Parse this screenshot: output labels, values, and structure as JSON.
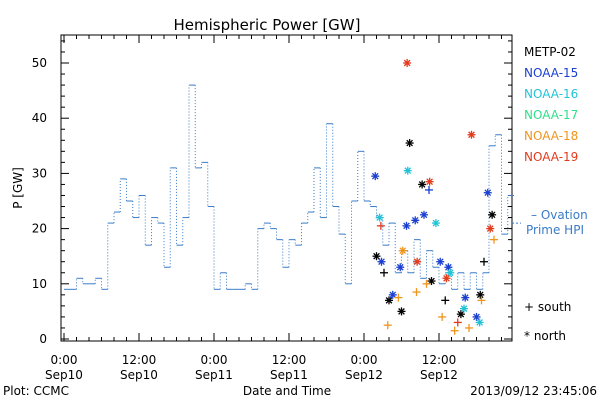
{
  "chart_data": {
    "type": "line",
    "title": "Hemispheric Power [GW]",
    "ylabel": "P [GW]",
    "xlabel": "Date and Time",
    "ylim": [
      0,
      55
    ],
    "xlim_hours": [
      0,
      72
    ],
    "x_unit": "hours from 2013-09-10 00:00 UT",
    "yticks": [
      0,
      10,
      20,
      30,
      40,
      50
    ],
    "xticks": [
      {
        "x": 0,
        "line1": "0:00",
        "line2": "Sep10"
      },
      {
        "x": 12,
        "line1": "12:00",
        "line2": "Sep10"
      },
      {
        "x": 24,
        "line1": "0:00",
        "line2": "Sep11"
      },
      {
        "x": 36,
        "line1": "12:00",
        "line2": "Sep11"
      },
      {
        "x": 48,
        "line1": "0:00",
        "line2": "Sep12"
      },
      {
        "x": 60,
        "line1": "12:00",
        "line2": "Sep12"
      }
    ],
    "footer_left": "Plot: CCMC",
    "footer_right": "2013/09/12 23:45:06",
    "ovation_label_line1": "– Ovation",
    "ovation_label_line2": "Prime HPI",
    "ovation_color": "#3a7cc8",
    "legend": [
      {
        "name": "METP-02",
        "color": "#000000"
      },
      {
        "name": "NOAA-15",
        "color": "#1a3fd1"
      },
      {
        "name": "NOAA-16",
        "color": "#22c3d6"
      },
      {
        "name": "NOAA-17",
        "color": "#2fe08a"
      },
      {
        "name": "NOAA-18",
        "color": "#f0941c"
      },
      {
        "name": "NOAA-19",
        "color": "#e23b1c"
      }
    ],
    "symbol_legend": [
      {
        "symbol": "+",
        "label": "south"
      },
      {
        "symbol": "*",
        "label": "north"
      }
    ],
    "ovation_series": {
      "name": "Ovation Prime HPI",
      "steps": [
        [
          0,
          9
        ],
        [
          0.5,
          9
        ],
        [
          2,
          11
        ],
        [
          3,
          10
        ],
        [
          5,
          11
        ],
        [
          6,
          9
        ],
        [
          7,
          21
        ],
        [
          8,
          23
        ],
        [
          9,
          29
        ],
        [
          10,
          25
        ],
        [
          11,
          22
        ],
        [
          12,
          26
        ],
        [
          13,
          17
        ],
        [
          14,
          22
        ],
        [
          15,
          21
        ],
        [
          16,
          13
        ],
        [
          17,
          31
        ],
        [
          18,
          17
        ],
        [
          19,
          22
        ],
        [
          20,
          46
        ],
        [
          21,
          31
        ],
        [
          22,
          32
        ],
        [
          23,
          24
        ],
        [
          24,
          9
        ],
        [
          25,
          12
        ],
        [
          26,
          9
        ],
        [
          27,
          9
        ],
        [
          28,
          9
        ],
        [
          29,
          10
        ],
        [
          30,
          9
        ],
        [
          31,
          20
        ],
        [
          32,
          21
        ],
        [
          33,
          20
        ],
        [
          34,
          18
        ],
        [
          35,
          13
        ],
        [
          36,
          18
        ],
        [
          37,
          17
        ],
        [
          38,
          21
        ],
        [
          39,
          23
        ],
        [
          40,
          31
        ],
        [
          41,
          22
        ],
        [
          42,
          39
        ],
        [
          43,
          24
        ],
        [
          44,
          19
        ],
        [
          45,
          10
        ],
        [
          46,
          25
        ],
        [
          47,
          34
        ],
        [
          48,
          25
        ],
        [
          49,
          24
        ],
        [
          50,
          22
        ],
        [
          51,
          17
        ],
        [
          52,
          21
        ],
        [
          53,
          12
        ],
        [
          54,
          16
        ],
        [
          55,
          12
        ],
        [
          56,
          18
        ],
        [
          57,
          11
        ],
        [
          58,
          16
        ],
        [
          59,
          13
        ],
        [
          60,
          10
        ],
        [
          61,
          12
        ],
        [
          62,
          9
        ],
        [
          63,
          12
        ],
        [
          64,
          9
        ],
        [
          65,
          12
        ],
        [
          66,
          9
        ],
        [
          67,
          12
        ],
        [
          68,
          35
        ],
        [
          69,
          37
        ],
        [
          70,
          19
        ],
        [
          71,
          26
        ],
        [
          72,
          26
        ]
      ]
    },
    "satellite_points": [
      {
        "sat": "METP-02",
        "hemi": "north",
        "x": 50.0,
        "y": 15
      },
      {
        "sat": "METP-02",
        "hemi": "south",
        "x": 51.2,
        "y": 12
      },
      {
        "sat": "METP-02",
        "hemi": "north",
        "x": 52.0,
        "y": 7
      },
      {
        "sat": "METP-02",
        "hemi": "north",
        "x": 54.0,
        "y": 5
      },
      {
        "sat": "METP-02",
        "hemi": "north",
        "x": 55.3,
        "y": 35.5
      },
      {
        "sat": "METP-02",
        "hemi": "north",
        "x": 57.3,
        "y": 28
      },
      {
        "sat": "METP-02",
        "hemi": "north",
        "x": 58.8,
        "y": 10.5
      },
      {
        "sat": "METP-02",
        "hemi": "south",
        "x": 61.0,
        "y": 7
      },
      {
        "sat": "METP-02",
        "hemi": "north",
        "x": 63.5,
        "y": 4.5
      },
      {
        "sat": "METP-02",
        "hemi": "north",
        "x": 66.6,
        "y": 8
      },
      {
        "sat": "METP-02",
        "hemi": "south",
        "x": 67.2,
        "y": 14
      },
      {
        "sat": "METP-02",
        "hemi": "north",
        "x": 68.5,
        "y": 22.5
      },
      {
        "sat": "NOAA-15",
        "hemi": "north",
        "x": 49.8,
        "y": 29.5
      },
      {
        "sat": "NOAA-15",
        "hemi": "north",
        "x": 50.8,
        "y": 14
      },
      {
        "sat": "NOAA-15",
        "hemi": "north",
        "x": 52.6,
        "y": 8
      },
      {
        "sat": "NOAA-15",
        "hemi": "north",
        "x": 53.8,
        "y": 13
      },
      {
        "sat": "NOAA-15",
        "hemi": "north",
        "x": 54.8,
        "y": 20.5
      },
      {
        "sat": "NOAA-15",
        "hemi": "north",
        "x": 56.2,
        "y": 21.5
      },
      {
        "sat": "NOAA-15",
        "hemi": "north",
        "x": 57.6,
        "y": 22.5
      },
      {
        "sat": "NOAA-15",
        "hemi": "south",
        "x": 58.4,
        "y": 27
      },
      {
        "sat": "NOAA-15",
        "hemi": "north",
        "x": 60.2,
        "y": 14
      },
      {
        "sat": "NOAA-15",
        "hemi": "north",
        "x": 61.5,
        "y": 13
      },
      {
        "sat": "NOAA-15",
        "hemi": "north",
        "x": 64.2,
        "y": 7.5
      },
      {
        "sat": "NOAA-15",
        "hemi": "north",
        "x": 66.0,
        "y": 4
      },
      {
        "sat": "NOAA-15",
        "hemi": "north",
        "x": 67.8,
        "y": 26.5
      },
      {
        "sat": "NOAA-16",
        "hemi": "north",
        "x": 50.5,
        "y": 22
      },
      {
        "sat": "NOAA-16",
        "hemi": "north",
        "x": 55.0,
        "y": 30.5
      },
      {
        "sat": "NOAA-16",
        "hemi": "north",
        "x": 59.5,
        "y": 21
      },
      {
        "sat": "NOAA-16",
        "hemi": "north",
        "x": 61.8,
        "y": 12
      },
      {
        "sat": "NOAA-16",
        "hemi": "north",
        "x": 64.0,
        "y": 5.5
      },
      {
        "sat": "NOAA-16",
        "hemi": "north",
        "x": 66.5,
        "y": 3
      },
      {
        "sat": "NOAA-18",
        "hemi": "south",
        "x": 51.8,
        "y": 2.5
      },
      {
        "sat": "NOAA-18",
        "hemi": "south",
        "x": 53.5,
        "y": 7.5
      },
      {
        "sat": "NOAA-18",
        "hemi": "north",
        "x": 54.2,
        "y": 16
      },
      {
        "sat": "NOAA-18",
        "hemi": "south",
        "x": 56.4,
        "y": 8.5
      },
      {
        "sat": "NOAA-18",
        "hemi": "south",
        "x": 58.0,
        "y": 10
      },
      {
        "sat": "NOAA-18",
        "hemi": "south",
        "x": 60.5,
        "y": 4
      },
      {
        "sat": "NOAA-18",
        "hemi": "south",
        "x": 62.5,
        "y": 1.5
      },
      {
        "sat": "NOAA-18",
        "hemi": "south",
        "x": 64.8,
        "y": 2
      },
      {
        "sat": "NOAA-18",
        "hemi": "south",
        "x": 66.8,
        "y": 7
      },
      {
        "sat": "NOAA-18",
        "hemi": "south",
        "x": 68.8,
        "y": 18
      },
      {
        "sat": "NOAA-19",
        "hemi": "south",
        "x": 50.7,
        "y": 20.5
      },
      {
        "sat": "NOAA-19",
        "hemi": "north",
        "x": 54.9,
        "y": 50
      },
      {
        "sat": "NOAA-19",
        "hemi": "north",
        "x": 56.5,
        "y": 14
      },
      {
        "sat": "NOAA-19",
        "hemi": "north",
        "x": 58.5,
        "y": 28.5
      },
      {
        "sat": "NOAA-19",
        "hemi": "north",
        "x": 61.2,
        "y": 11
      },
      {
        "sat": "NOAA-19",
        "hemi": "south",
        "x": 63.0,
        "y": 3
      },
      {
        "sat": "NOAA-19",
        "hemi": "north",
        "x": 65.2,
        "y": 37
      },
      {
        "sat": "NOAA-19",
        "hemi": "north",
        "x": 68.2,
        "y": 20
      }
    ]
  }
}
